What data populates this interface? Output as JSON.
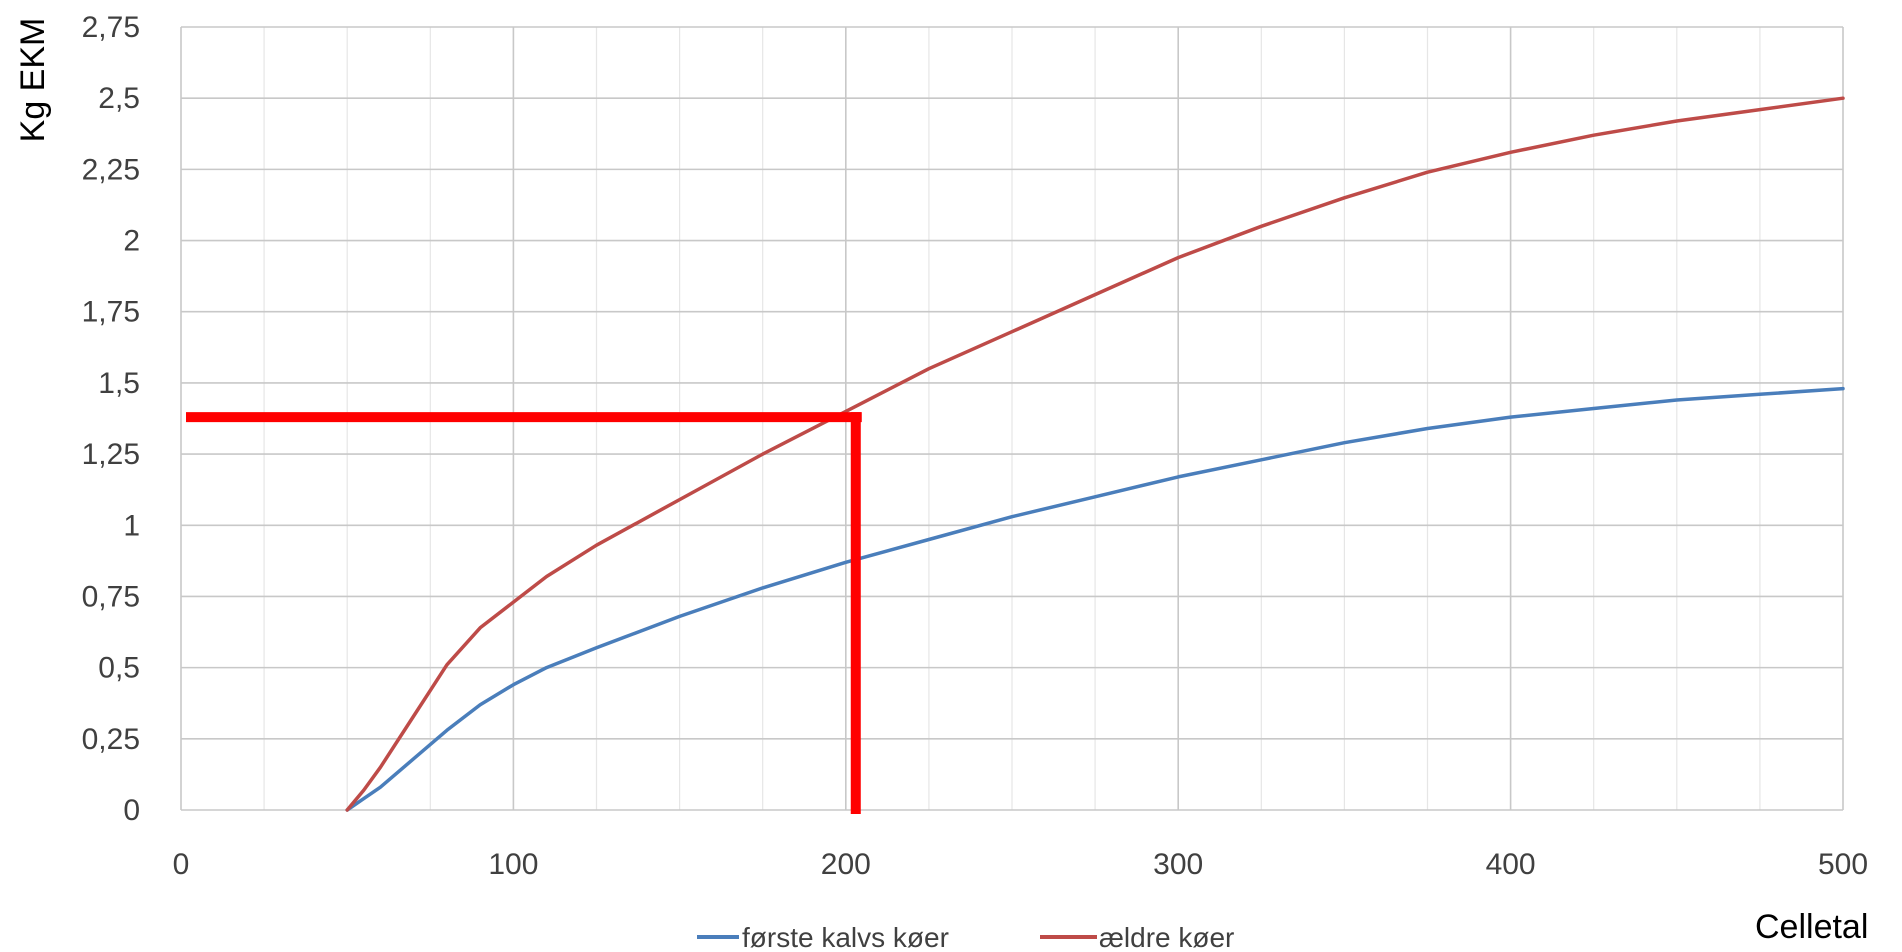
{
  "chart_data": {
    "type": "line",
    "xlabel": "Celletal",
    "ylabel": "Kg EKM",
    "xlim": [
      0,
      500
    ],
    "ylim": [
      0,
      2.75
    ],
    "x_ticks": [
      "0",
      "100",
      "200",
      "300",
      "400",
      "500"
    ],
    "y_ticks": [
      "0",
      "0,25",
      "0,5",
      "0,75",
      "1",
      "1,25",
      "1,5",
      "1,75",
      "2",
      "2,25",
      "2,5",
      "2,75"
    ],
    "grid": true,
    "legend_position": "bottom",
    "series": [
      {
        "name": "første kalvs køer",
        "color": "#4a7ebb",
        "x": [
          50,
          55,
          60,
          70,
          80,
          90,
          100,
          110,
          125,
          150,
          175,
          200,
          225,
          250,
          275,
          300,
          325,
          350,
          375,
          400,
          425,
          450,
          475,
          500
        ],
        "y": [
          0,
          0.04,
          0.08,
          0.18,
          0.28,
          0.37,
          0.44,
          0.5,
          0.57,
          0.68,
          0.78,
          0.87,
          0.95,
          1.03,
          1.1,
          1.17,
          1.23,
          1.29,
          1.34,
          1.38,
          1.41,
          1.44,
          1.46,
          1.48
        ]
      },
      {
        "name": "ældre køer",
        "color": "#be4b48",
        "x": [
          50,
          55,
          60,
          70,
          75,
          80,
          90,
          100,
          110,
          125,
          150,
          175,
          200,
          225,
          250,
          275,
          300,
          325,
          350,
          375,
          400,
          425,
          450,
          475,
          500
        ],
        "y": [
          0,
          0.07,
          0.15,
          0.33,
          0.42,
          0.51,
          0.64,
          0.73,
          0.82,
          0.93,
          1.09,
          1.25,
          1.4,
          1.55,
          1.68,
          1.81,
          1.94,
          2.05,
          2.15,
          2.24,
          2.31,
          2.37,
          2.42,
          2.46,
          2.5
        ]
      }
    ],
    "annotations": [
      {
        "type": "reference-lines",
        "x": 203,
        "y": 1.38,
        "color": "#ff0000"
      }
    ]
  }
}
